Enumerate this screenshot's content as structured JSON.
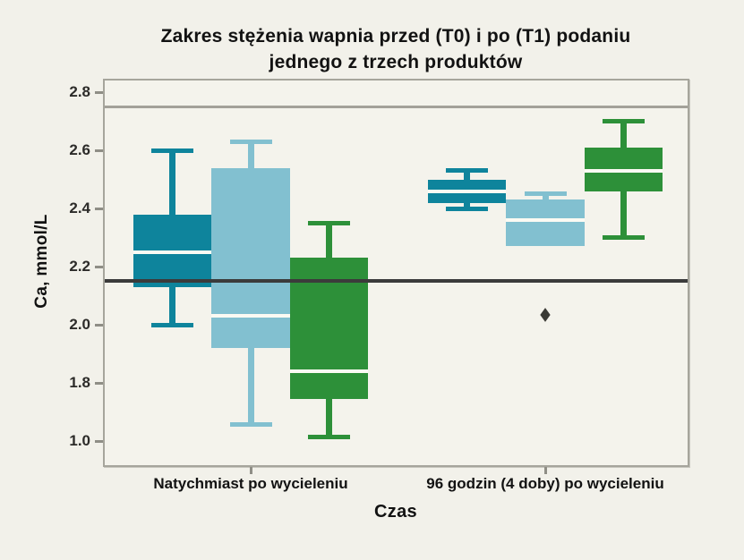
{
  "page": {
    "background_color": "#f2f1ea",
    "plot_background_color": "#f4f3ec",
    "frame_color": "#a6a59c",
    "median_line_color": "#fbfaf3",
    "outlier_color": "#3a3a35"
  },
  "chart_data": {
    "type": "boxplot",
    "title": "Zakres stężenia wapnia przed (T0) i po (T1) podaniu jednego z trzech produktów",
    "title_lines": [
      "Zakres stężenia wapnia przed (T0) i po (T1) podaniu",
      "jednego z trzech produktów"
    ],
    "ylabel": "Ca, mmol/L",
    "xlabel": "Czas",
    "y_ticks": [
      "2.8",
      "2.6",
      "2.4",
      "2.2",
      "2.0",
      "1.8",
      "1.0"
    ],
    "categories": [
      "Natychmiast po wycieleniu",
      "96 godzin (4 doby) po wycieleniu"
    ],
    "legend_position": "none",
    "grid": false,
    "reference_lines": [
      {
        "value": 2.75,
        "color": "#a3a199",
        "thickness": 3
      },
      {
        "value": 2.15,
        "color": "#3b3b3b",
        "thickness": 4
      }
    ],
    "series": [
      {
        "name": "produkt-teal",
        "color": "#0e849c",
        "boxes": [
          {
            "min": 2.0,
            "q1": 2.13,
            "median": 2.25,
            "q3": 2.38,
            "max": 2.6,
            "outliers": []
          },
          {
            "min": 2.4,
            "q1": 2.42,
            "median": 2.46,
            "q3": 2.5,
            "max": 2.53,
            "outliers": []
          }
        ]
      },
      {
        "name": "produkt-lightblue",
        "color": "#82c0d0",
        "boxes": [
          {
            "min": 1.23,
            "q1": 1.92,
            "median": 2.03,
            "q3": 2.54,
            "max": 2.63,
            "outliers": []
          },
          {
            "min": null,
            "q1": 2.27,
            "median": 2.36,
            "q3": 2.43,
            "max": 2.45,
            "outliers": [
              2.03
            ]
          }
        ]
      },
      {
        "name": "produkt-green",
        "color": "#2d9039",
        "boxes": [
          {
            "min": 1.05,
            "q1": 1.58,
            "median": 1.84,
            "q3": 2.23,
            "max": 2.35,
            "outliers": []
          },
          {
            "min": 2.3,
            "q1": 2.46,
            "median": 2.53,
            "q3": 2.61,
            "max": 2.7,
            "outliers": []
          }
        ]
      }
    ]
  }
}
